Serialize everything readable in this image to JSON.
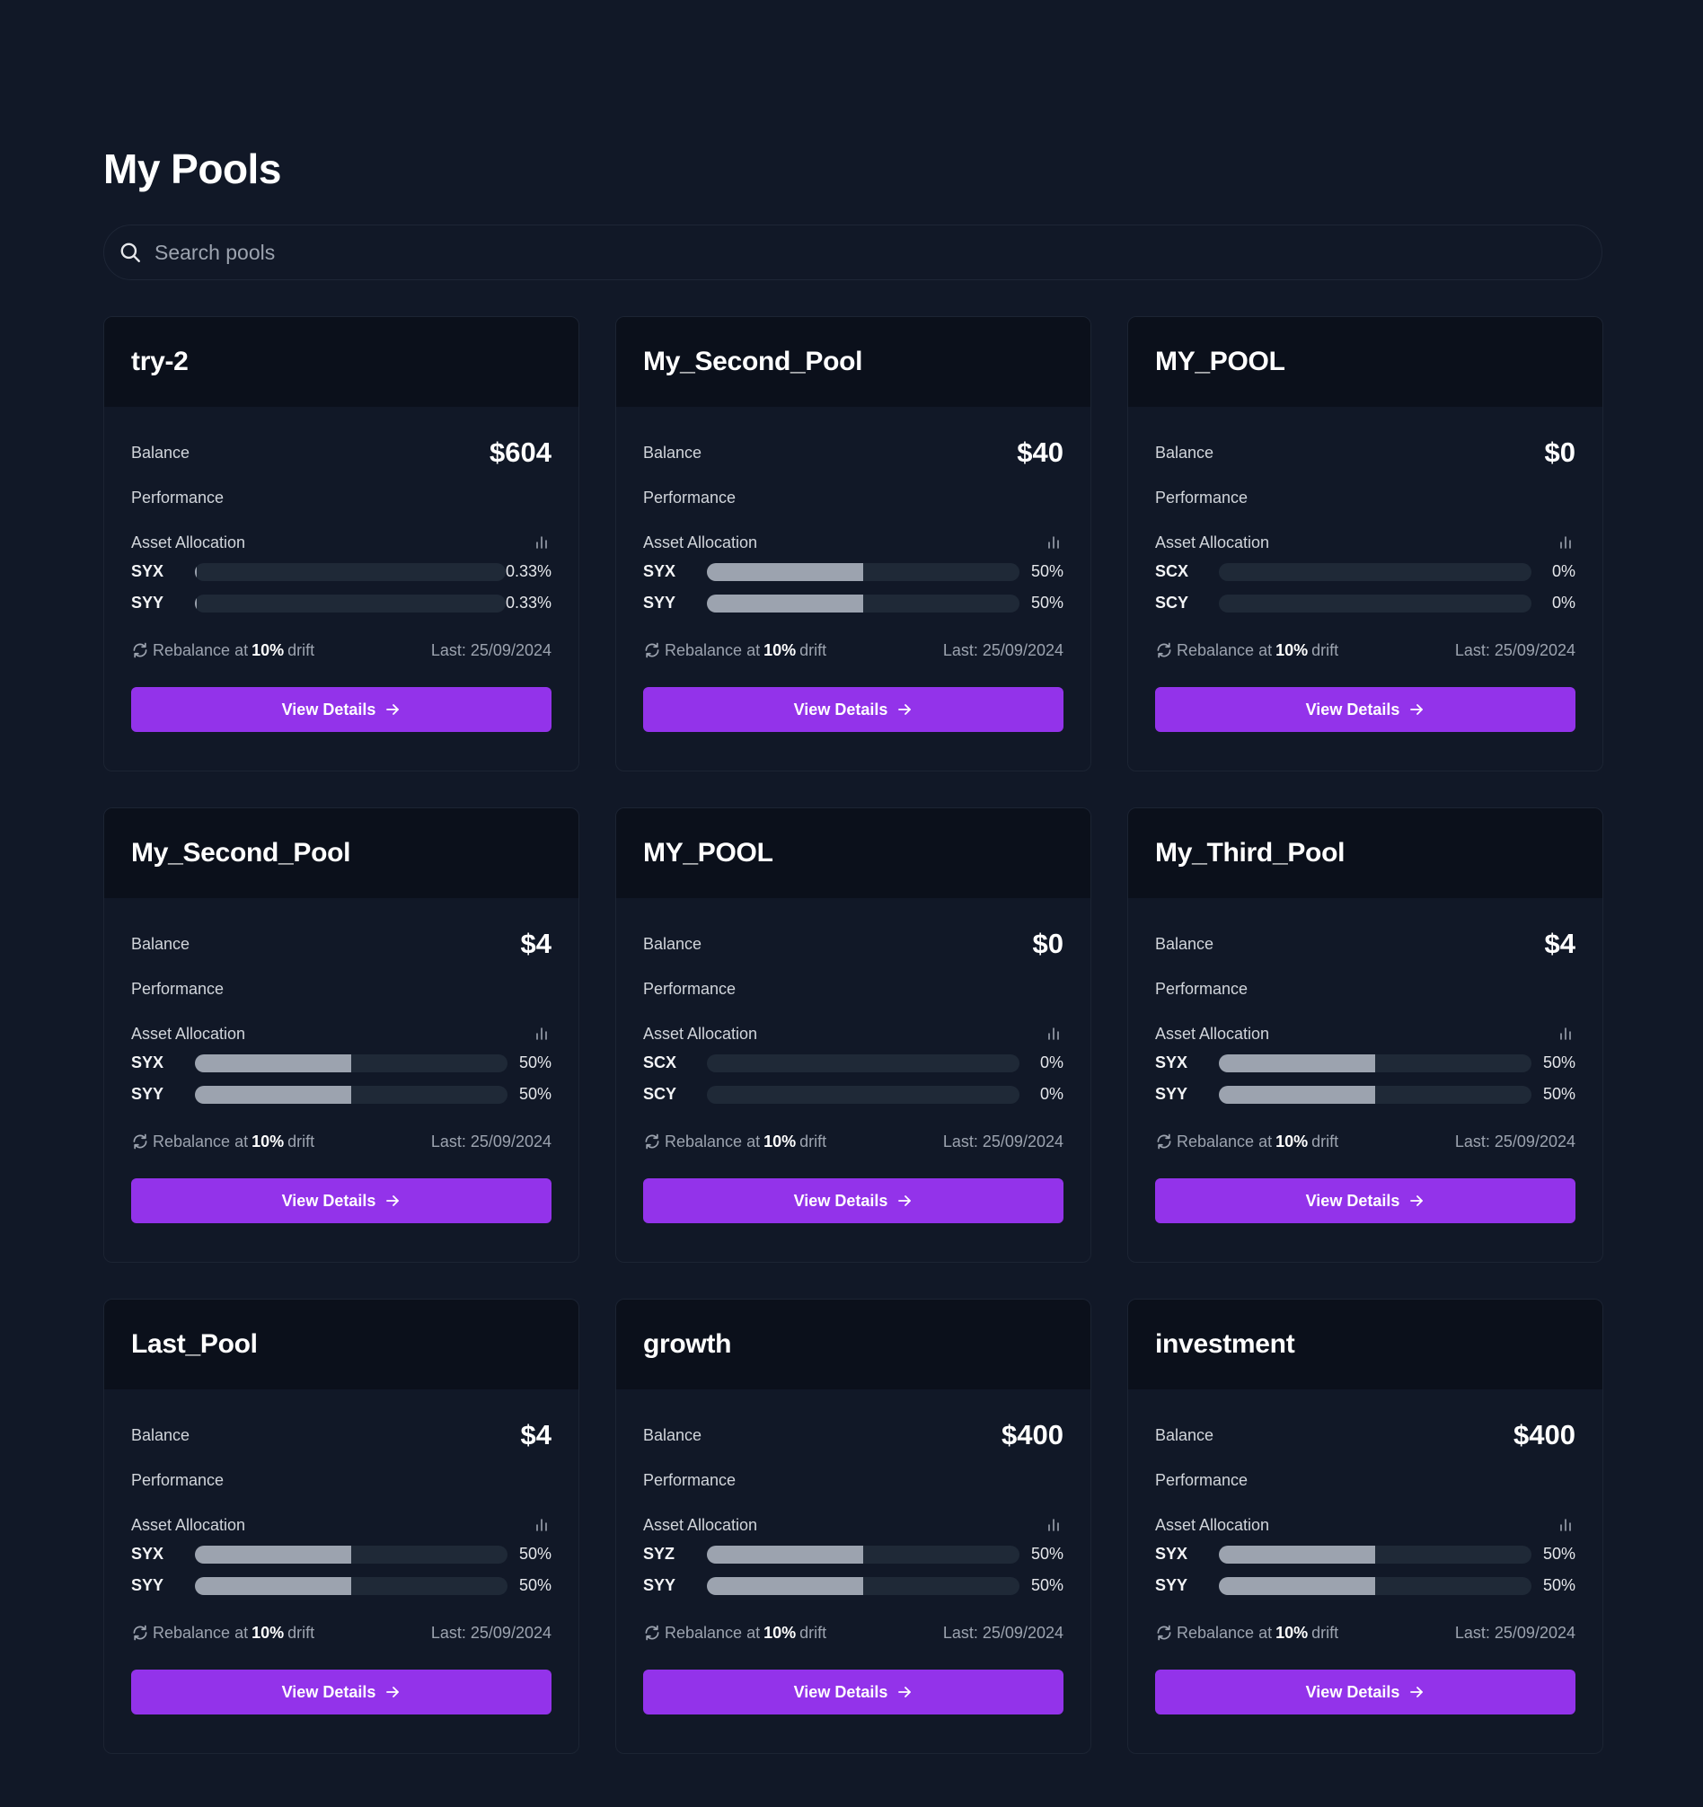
{
  "page": {
    "title": "My Pools"
  },
  "search": {
    "placeholder": "Search pools",
    "value": ""
  },
  "labels": {
    "balance": "Balance",
    "performance": "Performance",
    "asset_allocation": "Asset Allocation",
    "rebalance_prefix": "Rebalance at",
    "rebalance_suffix": "drift",
    "view_details": "View Details"
  },
  "colors": {
    "accent": "#9333ea",
    "bar_fill": "#9ca3af",
    "bar_track": "#1f2937",
    "background": "#111827"
  },
  "pools": [
    {
      "name": "try-2",
      "balance": "$604",
      "drift": "10%",
      "last": "Last: 25/09/2024",
      "assets": [
        {
          "name": "SYX",
          "pct": "0.33%",
          "fill": 0.0033
        },
        {
          "name": "SYY",
          "pct": "0.33%",
          "fill": 0.0033
        }
      ]
    },
    {
      "name": "My_Second_Pool",
      "balance": "$40",
      "drift": "10%",
      "last": "Last: 25/09/2024",
      "assets": [
        {
          "name": "SYX",
          "pct": "50%",
          "fill": 0.5
        },
        {
          "name": "SYY",
          "pct": "50%",
          "fill": 0.5
        }
      ]
    },
    {
      "name": "MY_POOL",
      "balance": "$0",
      "drift": "10%",
      "last": "Last: 25/09/2024",
      "assets": [
        {
          "name": "SCX",
          "pct": "0%",
          "fill": 0
        },
        {
          "name": "SCY",
          "pct": "0%",
          "fill": 0
        }
      ]
    },
    {
      "name": "My_Second_Pool",
      "balance": "$4",
      "drift": "10%",
      "last": "Last: 25/09/2024",
      "assets": [
        {
          "name": "SYX",
          "pct": "50%",
          "fill": 0.5
        },
        {
          "name": "SYY",
          "pct": "50%",
          "fill": 0.5
        }
      ]
    },
    {
      "name": "MY_POOL",
      "balance": "$0",
      "drift": "10%",
      "last": "Last: 25/09/2024",
      "assets": [
        {
          "name": "SCX",
          "pct": "0%",
          "fill": 0
        },
        {
          "name": "SCY",
          "pct": "0%",
          "fill": 0
        }
      ]
    },
    {
      "name": "My_Third_Pool",
      "balance": "$4",
      "drift": "10%",
      "last": "Last: 25/09/2024",
      "assets": [
        {
          "name": "SYX",
          "pct": "50%",
          "fill": 0.5
        },
        {
          "name": "SYY",
          "pct": "50%",
          "fill": 0.5
        }
      ]
    },
    {
      "name": "Last_Pool",
      "balance": "$4",
      "drift": "10%",
      "last": "Last: 25/09/2024",
      "assets": [
        {
          "name": "SYX",
          "pct": "50%",
          "fill": 0.5
        },
        {
          "name": "SYY",
          "pct": "50%",
          "fill": 0.5
        }
      ]
    },
    {
      "name": "growth",
      "balance": "$400",
      "drift": "10%",
      "last": "Last: 25/09/2024",
      "assets": [
        {
          "name": "SYZ",
          "pct": "50%",
          "fill": 0.5
        },
        {
          "name": "SYY",
          "pct": "50%",
          "fill": 0.5
        }
      ]
    },
    {
      "name": "investment",
      "balance": "$400",
      "drift": "10%",
      "last": "Last: 25/09/2024",
      "assets": [
        {
          "name": "SYX",
          "pct": "50%",
          "fill": 0.5
        },
        {
          "name": "SYY",
          "pct": "50%",
          "fill": 0.5
        }
      ]
    }
  ]
}
